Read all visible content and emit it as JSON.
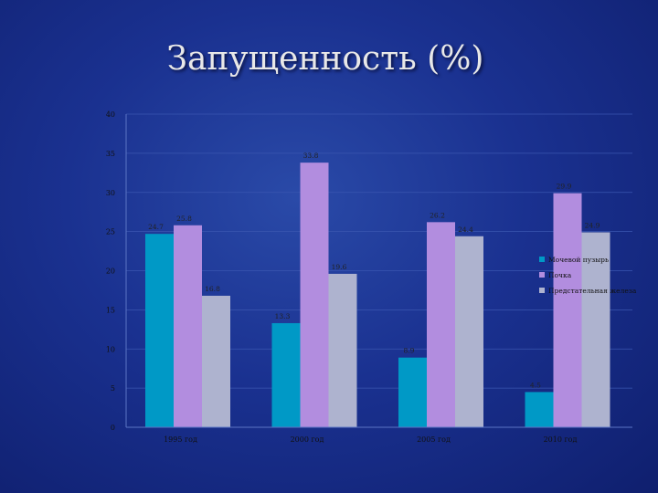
{
  "slide": {
    "title": "Запущенность (%)"
  },
  "chart_data": {
    "type": "bar",
    "categories": [
      "1995 год",
      "2000 год",
      "2005 год",
      "2010 год"
    ],
    "series": [
      {
        "name": "Мочевой пузырь",
        "values": [
          24.7,
          13.3,
          8.9,
          4.5
        ],
        "color": "#0099c6"
      },
      {
        "name": "Почка",
        "values": [
          25.8,
          33.8,
          26.2,
          29.9
        ],
        "color": "#b28ddf"
      },
      {
        "name": "Предстательная железа",
        "values": [
          16.8,
          19.6,
          24.4,
          24.9
        ],
        "color": "#aeb3cf"
      }
    ],
    "title": "",
    "xlabel": "",
    "ylabel": "",
    "ylim": [
      0,
      40
    ],
    "yticks": [
      0,
      5,
      10,
      15,
      20,
      25,
      30,
      35,
      40
    ],
    "ytick_labels": [
      "0",
      "5",
      "10",
      "15",
      "20",
      "25",
      "30",
      "35",
      "40"
    ],
    "grid": true,
    "legend_position": "right"
  }
}
